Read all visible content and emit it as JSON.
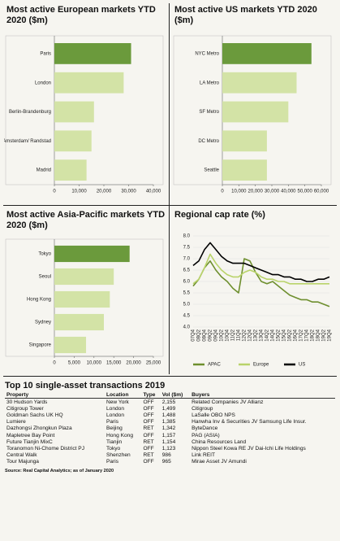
{
  "chart_data": [
    {
      "type": "hbar",
      "title": "Most active European markets YTD 2020 ($m)",
      "categories": [
        "Paris",
        "London",
        "Berlin-Brandenburg",
        "Amsterdam/ Randstad",
        "Madrid"
      ],
      "values": [
        31000,
        28000,
        16000,
        15000,
        13000
      ],
      "colors": [
        "#6b9a3c",
        "#d3e3a6",
        "#d3e3a6",
        "#d3e3a6",
        "#d3e3a6"
      ],
      "xlim": [
        0,
        40000
      ],
      "xticks": [
        0,
        {
          "value": 10000,
          "label": "10,000"
        },
        {
          "value": 20000,
          "label": "20,000"
        },
        {
          "value": 30000,
          "label": "30,000"
        },
        {
          "value": 40000,
          "label": "40,000"
        }
      ]
    },
    {
      "type": "hbar",
      "title": "Most active US markets YTD 2020 ($m)",
      "categories": [
        "NYC Metro",
        "LA Metro",
        "SF Metro",
        "DC Metro",
        "Seattle"
      ],
      "values": [
        54000,
        45000,
        40000,
        27000,
        27000
      ],
      "colors": [
        "#6b9a3c",
        "#d3e3a6",
        "#d3e3a6",
        "#d3e3a6",
        "#d3e3a6"
      ],
      "xlim": [
        0,
        60000
      ],
      "xticks": [
        0,
        {
          "value": 10000,
          "label": "10,000"
        },
        {
          "value": 20000,
          "label": "20,000"
        },
        {
          "value": 30000,
          "label": "30,000"
        },
        {
          "value": 40000,
          "label": "40,000"
        },
        {
          "value": 50000,
          "label": "50,000"
        },
        {
          "value": 60000,
          "label": "60,000"
        }
      ]
    },
    {
      "type": "hbar",
      "title": "Most active Asia-Pacific markets YTD 2020 ($m)",
      "categories": [
        "Tokyo",
        "Seoul",
        "Hong Kong",
        "Sydney",
        "Singapore"
      ],
      "values": [
        19000,
        15000,
        14000,
        12500,
        8000
      ],
      "colors": [
        "#6b9a3c",
        "#d3e3a6",
        "#d3e3a6",
        "#d3e3a6",
        "#d3e3a6"
      ],
      "xlim": [
        0,
        25000
      ],
      "xticks": [
        0,
        {
          "value": 5000,
          "label": "5,000"
        },
        {
          "value": 10000,
          "label": "10,000"
        },
        {
          "value": 15000,
          "label": "15,000"
        },
        {
          "value": 20000,
          "label": "20,000"
        },
        {
          "value": 25000,
          "label": "25,000"
        }
      ]
    },
    {
      "type": "line",
      "title": "Regional cap rate (%)",
      "categories": [
        "07Q4",
        "08Q2",
        "08Q4",
        "09Q2",
        "09Q4",
        "10Q2",
        "10Q4",
        "11Q2",
        "11Q4",
        "12Q2",
        "12Q4",
        "13Q2",
        "13Q4",
        "14Q2",
        "14Q4",
        "15Q2",
        "15Q4",
        "16Q2",
        "16Q4",
        "17Q2",
        "17Q4",
        "18Q2",
        "18Q4",
        "19Q2",
        "19Q4"
      ],
      "series": [
        {
          "name": "APAC",
          "color": "#6e8f2e",
          "values": [
            5.8,
            6.1,
            6.6,
            6.9,
            6.5,
            6.2,
            6.0,
            5.7,
            5.5,
            7.0,
            6.9,
            6.4,
            6.0,
            5.9,
            6.0,
            5.8,
            5.6,
            5.4,
            5.3,
            5.2,
            5.2,
            5.1,
            5.1,
            5.0,
            4.9
          ]
        },
        {
          "name": "Europe",
          "color": "#b9d36a",
          "values": [
            5.9,
            6.1,
            6.6,
            7.2,
            6.8,
            6.5,
            6.3,
            6.2,
            6.2,
            6.4,
            6.5,
            6.4,
            6.2,
            6.1,
            6.1,
            6.0,
            6.0,
            5.9,
            5.9,
            5.9,
            5.9,
            5.9,
            5.9,
            5.9,
            5.9
          ]
        },
        {
          "name": "US",
          "color": "#000000",
          "values": [
            6.7,
            6.9,
            7.4,
            7.7,
            7.4,
            7.1,
            6.9,
            6.8,
            6.8,
            6.8,
            6.7,
            6.6,
            6.5,
            6.4,
            6.3,
            6.3,
            6.2,
            6.2,
            6.1,
            6.1,
            6.0,
            6.0,
            6.1,
            6.1,
            6.2
          ]
        }
      ],
      "ylim": [
        4,
        8
      ],
      "yticks": [
        {
          "value": 4,
          "label": "4.0"
        },
        4.5,
        {
          "value": 5,
          "label": "5.0"
        },
        5.5,
        {
          "value": 6,
          "label": "6.0"
        },
        6.5,
        {
          "value": 7,
          "label": "7.0"
        },
        7.5,
        {
          "value": 8,
          "label": "8.0"
        }
      ],
      "legend": "bottom"
    }
  ],
  "table": {
    "title": "Top 10 single-asset transactions 2019",
    "columns": [
      "Property",
      "Location",
      "Type",
      "Vol ($m)",
      "Buyers"
    ],
    "rows": [
      [
        "30 Hudson Yards",
        "New York",
        "OFF",
        "2,155",
        "Related Companies JV Allianz"
      ],
      [
        "Citigroup Tower",
        "London",
        "OFF",
        "1,499",
        "Citigroup"
      ],
      [
        "Goldman Sachs UK HQ",
        "London",
        "OFF",
        "1,488",
        "LaSalle OBO NPS"
      ],
      [
        "Lumiere",
        "Paris",
        "OFF",
        "1,385",
        "Hanwha Inv & Securities JV Samsung Life Insur."
      ],
      [
        "Dazhongsi Zhongkun Plaza",
        "Beijing",
        "RET",
        "1,342",
        "ByteDance"
      ],
      [
        "Mapletree Bay Point",
        "Hong Kong",
        "OFF",
        "1,157",
        "PAG (ASIA)"
      ],
      [
        "Future Tianjin MixC",
        "Tianjin",
        "RET",
        "1,154",
        "China Resources Land"
      ],
      [
        "Toranomon Ni-Chome District PJ",
        "Tokyo",
        "OFF",
        "1,123",
        "Nippon Steel Kowa RE JV Dai-Ichi Life Holdings"
      ],
      [
        "Central Walk",
        "Shenzhen",
        "RET",
        "986",
        "Link REIT"
      ],
      [
        "Tour Majunga",
        "Paris",
        "OFF",
        "965",
        "Mirae Asset JV Amundi"
      ]
    ],
    "source": "Source: Real Capital Analytics; as of January 2020"
  }
}
